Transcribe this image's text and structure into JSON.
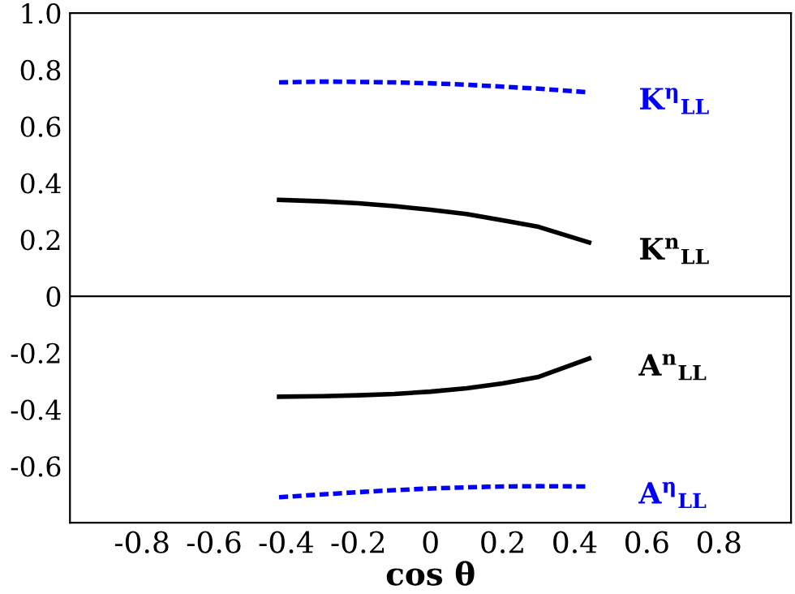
{
  "chart_data": {
    "type": "line",
    "xlabel": "cos θ",
    "xlim": [
      -1,
      1
    ],
    "ylim": [
      -0.8,
      1.0
    ],
    "xticks": [
      -0.8,
      -0.6,
      -0.4,
      -0.2,
      0,
      0.2,
      0.4,
      0.6,
      0.8
    ],
    "yticks": [
      -0.6,
      -0.4,
      -0.2,
      0,
      0.2,
      0.4,
      0.6,
      0.8,
      {
        "value": 1.0,
        "label": "1.0"
      }
    ],
    "x": [
      -0.42,
      -0.3,
      -0.2,
      -0.1,
      0,
      0.1,
      0.2,
      0.3,
      0.44
    ],
    "series": [
      {
        "name": "K$^{η}$$_{LL}$",
        "color": "#0000ff",
        "line_style": "dashed",
        "values": [
          0.755,
          0.758,
          0.757,
          0.755,
          0.752,
          0.747,
          0.74,
          0.733,
          0.72
        ]
      },
      {
        "name": "K$^{n}$$_{LL}$",
        "color": "#000000",
        "line_style": "solid",
        "values": [
          0.34,
          0.335,
          0.328,
          0.318,
          0.305,
          0.29,
          0.268,
          0.245,
          0.19
        ]
      },
      {
        "name": "A$^{n}$$_{LL}$",
        "color": "#000000",
        "line_style": "solid",
        "values": [
          -0.355,
          -0.353,
          -0.35,
          -0.345,
          -0.337,
          -0.325,
          -0.308,
          -0.285,
          -0.22
        ]
      },
      {
        "name": "A$^{η}$$_{LL}$",
        "color": "#0000ff",
        "line_style": "dashed",
        "values": [
          -0.71,
          -0.7,
          -0.692,
          -0.685,
          -0.679,
          -0.675,
          -0.672,
          -0.671,
          -0.672
        ]
      }
    ],
    "ref_lines": [
      {
        "axis": "y",
        "value": 0,
        "color": "#000000"
      }
    ],
    "grid": false,
    "legend": false,
    "marker": "none"
  }
}
